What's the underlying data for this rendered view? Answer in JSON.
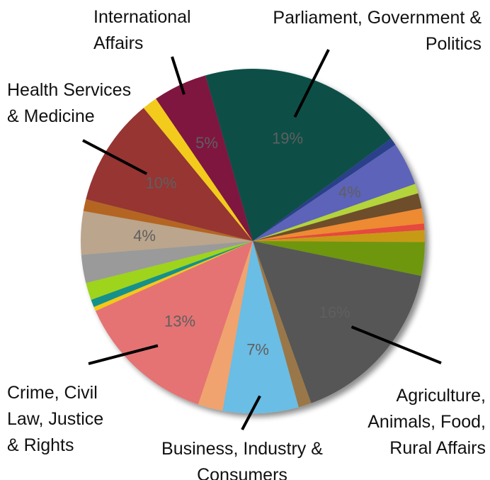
{
  "chart_data": {
    "type": "pie",
    "slices": [
      {
        "value": 19,
        "color": "#0b4f47",
        "label": "19%",
        "category": "Parliament, Government & Politics",
        "category_lines": [
          "Parliament, Government &",
          "Politics"
        ]
      },
      {
        "value": 0.7,
        "color": "#2c3f8a"
      },
      {
        "value": 4,
        "color": "#5c63b8",
        "label": "4%"
      },
      {
        "value": 0.9,
        "color": "#b3d43a"
      },
      {
        "value": 1.4,
        "color": "#6e4d2a"
      },
      {
        "value": 1.4,
        "color": "#ee8a30"
      },
      {
        "value": 0.6,
        "color": "#e6483c"
      },
      {
        "value": 1.1,
        "color": "#c79a18"
      },
      {
        "value": 3.1,
        "color": "#6e9710"
      },
      {
        "value": 16,
        "color": "#565656",
        "label": "16%",
        "category": "Agriculture, Animals, Food, Rural Affairs",
        "category_lines": [
          "Agriculture,",
          "Animals, Food,",
          "Rural Affairs"
        ]
      },
      {
        "value": 1.2,
        "color": "#9a7748"
      },
      {
        "value": 7,
        "color": "#6bbde4",
        "label": "7%",
        "category": "Business, Industry & Consumers",
        "category_lines": [
          "Business, Industry &",
          "Consumers"
        ]
      },
      {
        "value": 2.3,
        "color": "#f0a36e"
      },
      {
        "value": 13,
        "color": "#e57373",
        "label": "13%",
        "category": "Crime, Civil Law, Justice & Rights",
        "category_lines": [
          "Crime, Civil",
          "Law, Justice",
          "& Rights"
        ]
      },
      {
        "value": 0.4,
        "color": "#f5c816"
      },
      {
        "value": 0.7,
        "color": "#17918a"
      },
      {
        "value": 1.6,
        "color": "#9ed41c"
      },
      {
        "value": 2.6,
        "color": "#9a9a9a"
      },
      {
        "value": 4,
        "color": "#bba58c",
        "label": "4%"
      },
      {
        "value": 1.1,
        "color": "#b46524"
      },
      {
        "value": 10,
        "color": "#963532",
        "label": "10%",
        "category": "Health Services & Medicine",
        "category_lines": [
          "Health Services",
          "& Medicine"
        ]
      },
      {
        "value": 1.4,
        "color": "#f2cb1e"
      },
      {
        "value": 5,
        "color": "#7f1240",
        "label": "5%",
        "category": "International Affairs",
        "category_lines": [
          "International",
          "Affairs"
        ]
      }
    ]
  }
}
